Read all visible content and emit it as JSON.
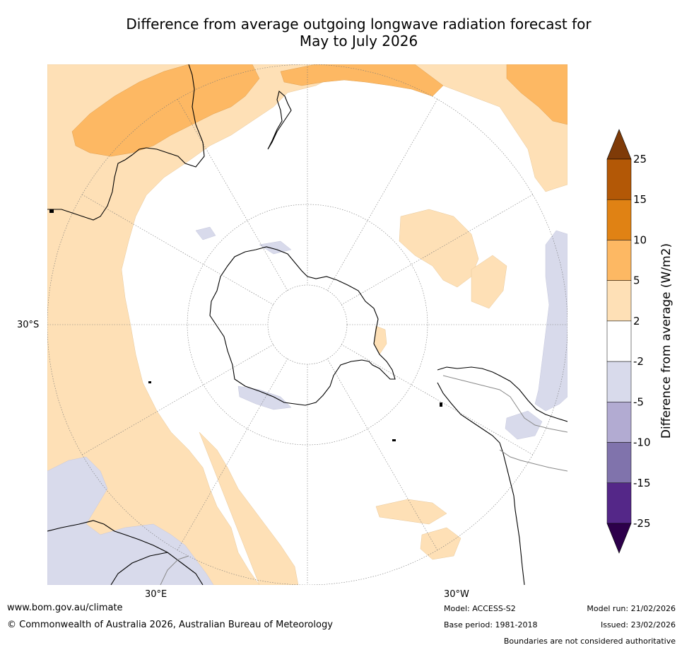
{
  "title_line1": "Difference from average outgoing longwave radiation forecast for",
  "title_line2": "May to July 2026",
  "latitude_label": "30°S",
  "lon_labels": {
    "east": "30°E",
    "west": "30°W"
  },
  "legend": {
    "title": "Difference from average (W/m2)",
    "ticks": [
      "25",
      "15",
      "10",
      "5",
      "2",
      "-2",
      "-5",
      "-10",
      "-15",
      "-25"
    ],
    "colors": [
      "#7f3b08",
      "#b35806",
      "#e08214",
      "#fdb863",
      "#fee0b6",
      "#ffffff",
      "#d8daeb",
      "#b2abd2",
      "#8073ac",
      "#542788",
      "#2d004b"
    ]
  },
  "footer": {
    "website": "www.bom.gov.au/climate",
    "copyright": "© Commonwealth of Australia 2026, Australian Bureau of Meteorology",
    "model": "Model: ACCESS-S2",
    "base_period": "Base period: 1981-2018",
    "model_run": "Model run: 21/02/2026",
    "issued": "Issued: 23/02/2026",
    "disclaimer": "Boundaries are not considered authoritative"
  }
}
